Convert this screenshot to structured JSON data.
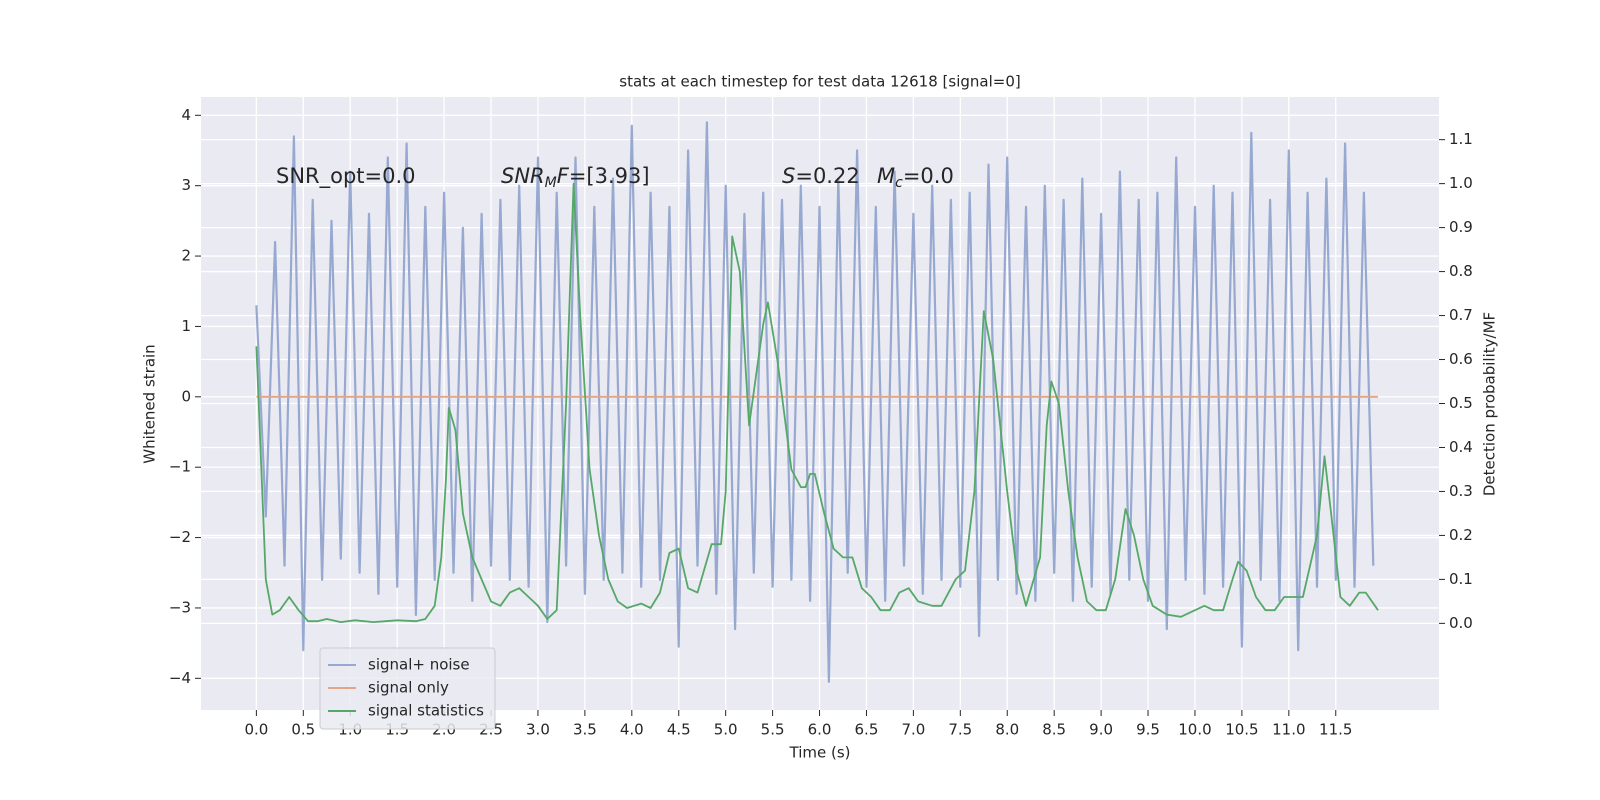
{
  "chart_data": {
    "type": "line",
    "title": "stats at each timestep for test data 12618 [signal=0]",
    "x_label": "Time (s)",
    "y_label": "Whitened strain",
    "y2_label": "Detection probability/MF",
    "xlim": [
      -0.59,
      12.6
    ],
    "ylim": [
      -4.45,
      4.26
    ],
    "y2lim": [
      -0.197,
      1.197
    ],
    "xticks": [
      {
        "value": 0,
        "label": "0.0"
      },
      0.5,
      {
        "value": 1,
        "label": "1.0"
      },
      1.5,
      {
        "value": 2,
        "label": "2.0"
      },
      2.5,
      {
        "value": 3,
        "label": "3.0"
      },
      3.5,
      {
        "value": 4,
        "label": "4.0"
      },
      4.5,
      {
        "value": 5,
        "label": "5.0"
      },
      5.5,
      {
        "value": 6,
        "label": "6.0"
      },
      6.5,
      {
        "value": 7,
        "label": "7.0"
      },
      7.5,
      {
        "value": 8,
        "label": "8.0"
      },
      8.5,
      {
        "value": 9,
        "label": "9.0"
      },
      9.5,
      {
        "value": 10,
        "label": "10.0"
      },
      10.5,
      {
        "value": 11,
        "label": "11.0"
      },
      11.5
    ],
    "yticks": [
      {
        "value": -4,
        "label": "−4"
      },
      {
        "value": -3,
        "label": "−3"
      },
      {
        "value": -2,
        "label": "−2"
      },
      {
        "value": -1,
        "label": "−1"
      },
      0,
      1,
      2,
      3,
      4
    ],
    "y2ticks": [
      {
        "value": 0,
        "label": "0.0"
      },
      0.1,
      0.2,
      0.3,
      0.4,
      0.5,
      0.6,
      0.7,
      0.8,
      0.9,
      {
        "value": 1,
        "label": "1.0"
      },
      1.1
    ],
    "grid": true,
    "legend": "lower left",
    "annotations": [
      [
        {
          "text": "SNR_opt=0.0"
        }
      ],
      [
        {
          "text": "SNR",
          "italic": true
        },
        {
          "text": "M",
          "italic": true,
          "sub": true
        },
        {
          "text": "F",
          "italic": true
        },
        {
          "text": "=[3.93]"
        }
      ],
      [
        {
          "text": "S",
          "italic": true
        },
        {
          "text": "=0.22"
        }
      ],
      [
        {
          "text": "M",
          "italic": true
        },
        {
          "text": "c",
          "italic": true,
          "sub": true
        },
        {
          "text": "=0.0"
        }
      ]
    ],
    "series": [
      {
        "name": "signal+ noise",
        "color": "#97a9d0",
        "x": [
          0.0,
          0.1,
          0.2,
          0.3,
          0.4,
          0.5,
          0.6,
          0.7,
          0.8,
          0.9,
          1.0,
          1.1,
          1.2,
          1.3,
          1.4,
          1.5,
          1.6,
          1.7,
          1.8,
          1.9,
          2.0,
          2.1,
          2.2,
          2.3,
          2.4,
          2.5,
          2.6,
          2.7,
          2.8,
          2.9,
          3.0,
          3.1,
          3.2,
          3.3,
          3.4,
          3.5,
          3.6,
          3.7,
          3.8,
          3.9,
          4.0,
          4.1,
          4.2,
          4.3,
          4.4,
          4.5,
          4.6,
          4.7,
          4.8,
          4.9,
          5.0,
          5.1,
          5.2,
          5.3,
          5.4,
          5.5,
          5.6,
          5.7,
          5.8,
          5.9,
          6.0,
          6.1,
          6.2,
          6.3,
          6.4,
          6.5,
          6.6,
          6.7,
          6.8,
          6.9,
          7.0,
          7.1,
          7.2,
          7.3,
          7.4,
          7.5,
          7.6,
          7.7,
          7.8,
          7.9,
          8.0,
          8.1,
          8.2,
          8.3,
          8.4,
          8.5,
          8.6,
          8.7,
          8.8,
          8.9,
          9.0,
          9.1,
          9.2,
          9.3,
          9.4,
          9.5,
          9.6,
          9.7,
          9.8,
          9.9,
          10.0,
          10.1,
          10.2,
          10.3,
          10.4,
          10.5,
          10.6,
          10.7,
          10.8,
          10.9,
          11.0,
          11.1,
          11.2,
          11.3,
          11.4,
          11.5,
          11.6,
          11.7,
          11.8,
          11.9
        ],
        "values": [
          1.3,
          -1.7,
          2.2,
          -2.4,
          3.7,
          -3.6,
          2.8,
          -2.6,
          2.5,
          -2.3,
          3.2,
          -2.5,
          2.6,
          -2.8,
          3.4,
          -2.7,
          3.6,
          -3.1,
          2.7,
          -2.6,
          2.9,
          -2.5,
          2.4,
          -2.9,
          2.6,
          -2.4,
          2.8,
          -2.6,
          3.0,
          -2.7,
          3.4,
          -3.2,
          2.9,
          -2.4,
          3.4,
          -2.8,
          2.7,
          -2.6,
          3.1,
          -2.5,
          3.85,
          -2.7,
          2.9,
          -2.6,
          2.7,
          -3.55,
          3.5,
          -2.4,
          3.9,
          -2.8,
          3.0,
          -3.3,
          2.6,
          -2.5,
          2.9,
          -2.7,
          2.8,
          -2.6,
          3.0,
          -2.9,
          2.7,
          -4.05,
          3.1,
          -2.5,
          3.5,
          -2.7,
          2.7,
          -2.9,
          3.2,
          -2.4,
          2.6,
          -2.8,
          3.0,
          -2.6,
          2.8,
          -2.7,
          2.9,
          -3.4,
          3.3,
          -2.6,
          3.4,
          -2.8,
          2.7,
          -2.9,
          3.0,
          -2.5,
          2.8,
          -2.9,
          3.1,
          -2.7,
          2.6,
          -2.8,
          3.2,
          -2.6,
          2.8,
          -2.9,
          2.9,
          -3.3,
          3.4,
          -2.6,
          2.7,
          -2.8,
          3.0,
          -2.7,
          2.9,
          -3.55,
          3.75,
          -2.6,
          2.8,
          -2.9,
          3.5,
          -3.6,
          2.9,
          -2.7,
          3.1,
          -2.6,
          3.6,
          -2.7,
          2.9,
          -2.4
        ]
      },
      {
        "name": "signal only",
        "color": "#e4a587",
        "x": [
          0.0,
          11.95
        ],
        "values": [
          0,
          0
        ]
      },
      {
        "name": "signal statistics",
        "color": "#55a868",
        "axis": "y2",
        "x": [
          0.0,
          0.1,
          0.17,
          0.25,
          0.35,
          0.45,
          0.55,
          0.65,
          0.75,
          0.9,
          1.05,
          1.25,
          1.5,
          1.7,
          1.8,
          1.9,
          1.97,
          2.02,
          2.05,
          2.12,
          2.2,
          2.3,
          2.4,
          2.5,
          2.6,
          2.7,
          2.8,
          2.9,
          3.0,
          3.1,
          3.2,
          3.3,
          3.38,
          3.45,
          3.55,
          3.65,
          3.75,
          3.85,
          3.95,
          4.1,
          4.2,
          4.3,
          4.4,
          4.5,
          4.6,
          4.7,
          4.85,
          4.95,
          5.0,
          5.07,
          5.15,
          5.25,
          5.4,
          5.45,
          5.55,
          5.7,
          5.8,
          5.85,
          5.9,
          5.95,
          6.05,
          6.15,
          6.25,
          6.35,
          6.45,
          6.55,
          6.65,
          6.75,
          6.85,
          6.95,
          7.05,
          7.2,
          7.3,
          7.45,
          7.55,
          7.65,
          7.75,
          7.85,
          8.0,
          8.1,
          8.2,
          8.35,
          8.42,
          8.47,
          8.55,
          8.65,
          8.75,
          8.85,
          8.95,
          9.05,
          9.15,
          9.26,
          9.35,
          9.45,
          9.55,
          9.7,
          9.85,
          10.0,
          10.1,
          10.2,
          10.3,
          10.4,
          10.46,
          10.55,
          10.65,
          10.75,
          10.85,
          10.95,
          11.05,
          11.15,
          11.3,
          11.38,
          11.45,
          11.55,
          11.65,
          11.75,
          11.82,
          11.95
        ],
        "values": [
          0.63,
          0.1,
          0.02,
          0.03,
          0.06,
          0.03,
          0.005,
          0.005,
          0.01,
          0.003,
          0.007,
          0.003,
          0.007,
          0.005,
          0.01,
          0.04,
          0.15,
          0.33,
          0.49,
          0.44,
          0.25,
          0.15,
          0.1,
          0.05,
          0.04,
          0.07,
          0.08,
          0.06,
          0.04,
          0.01,
          0.03,
          0.5,
          1.0,
          0.7,
          0.35,
          0.2,
          0.1,
          0.05,
          0.035,
          0.045,
          0.035,
          0.07,
          0.16,
          0.17,
          0.08,
          0.07,
          0.18,
          0.18,
          0.3,
          0.88,
          0.8,
          0.45,
          0.68,
          0.73,
          0.6,
          0.35,
          0.31,
          0.31,
          0.34,
          0.34,
          0.25,
          0.17,
          0.15,
          0.15,
          0.08,
          0.06,
          0.03,
          0.03,
          0.07,
          0.08,
          0.05,
          0.04,
          0.04,
          0.1,
          0.12,
          0.3,
          0.71,
          0.6,
          0.3,
          0.12,
          0.04,
          0.15,
          0.45,
          0.55,
          0.5,
          0.3,
          0.15,
          0.05,
          0.03,
          0.03,
          0.1,
          0.26,
          0.2,
          0.1,
          0.04,
          0.02,
          0.015,
          0.03,
          0.04,
          0.03,
          0.03,
          0.1,
          0.14,
          0.12,
          0.06,
          0.03,
          0.03,
          0.06,
          0.06,
          0.06,
          0.2,
          0.38,
          0.25,
          0.06,
          0.04,
          0.07,
          0.07,
          0.03
        ]
      }
    ]
  }
}
